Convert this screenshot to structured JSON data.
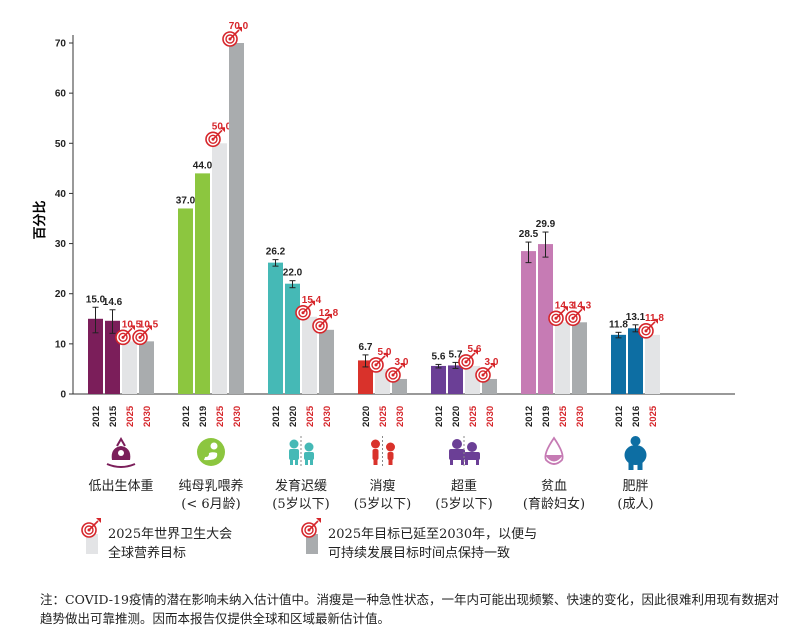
{
  "chart_data": {
    "type": "bar",
    "ylabel": "百分比",
    "ylim": [
      0,
      70
    ],
    "yticks": [
      0,
      10,
      20,
      30,
      40,
      50,
      60,
      70
    ],
    "target_color": "#d6262b",
    "groups": [
      {
        "name": "低出生体重",
        "sub": "",
        "color": "#7b1e5a",
        "icon": "baby-weight-icon",
        "bars": [
          {
            "year": "2012",
            "value": 15.0,
            "label": "15.0",
            "kind": "observed",
            "err": [
              12.2,
              17.3
            ]
          },
          {
            "year": "2015",
            "value": 14.6,
            "label": "14.6",
            "kind": "observed",
            "err": [
              12.1,
              16.8
            ]
          },
          {
            "year": "2025",
            "value": 10.5,
            "label": "10.5",
            "kind": "target2025"
          },
          {
            "year": "2030",
            "value": 10.5,
            "label": "10.5",
            "kind": "target2030"
          }
        ]
      },
      {
        "name": "纯母乳喂养",
        "sub": "(< 6月龄)",
        "color": "#8cc63f",
        "icon": "breastfeeding-icon",
        "bars": [
          {
            "year": "2012",
            "value": 37.0,
            "label": "37.0",
            "kind": "observed"
          },
          {
            "year": "2019",
            "value": 44.0,
            "label": "44.0",
            "kind": "observed"
          },
          {
            "year": "2025",
            "value": 50.0,
            "label": "50.0",
            "kind": "target2025"
          },
          {
            "year": "2030",
            "value": 70.0,
            "label": "70.0",
            "kind": "target2030"
          }
        ]
      },
      {
        "name": "发育迟缓",
        "sub": "(5岁以下)",
        "color": "#45b9b6",
        "icon": "children-height-icon",
        "bars": [
          {
            "year": "2012",
            "value": 26.2,
            "label": "26.2",
            "kind": "observed",
            "err": [
              25.5,
              26.8
            ]
          },
          {
            "year": "2020",
            "value": 22.0,
            "label": "22.0",
            "kind": "observed",
            "err": [
              21.2,
              22.6
            ]
          },
          {
            "year": "2025",
            "value": 15.4,
            "label": "15.4",
            "kind": "target2025"
          },
          {
            "year": "2030",
            "value": 12.8,
            "label": "12.8",
            "kind": "target2030"
          }
        ]
      },
      {
        "name": "消瘦",
        "sub": "(5岁以下)",
        "color": "#d9322b",
        "icon": "children-wasting-icon",
        "bars": [
          {
            "year": "2020",
            "value": 6.7,
            "label": "6.7",
            "kind": "observed",
            "err": [
              5.4,
              7.8
            ]
          },
          {
            "year": "2025",
            "value": 5.0,
            "label": "5.0",
            "kind": "target2025"
          },
          {
            "year": "2030",
            "value": 3.0,
            "label": "3.0",
            "kind": "target2030"
          }
        ]
      },
      {
        "name": "超重",
        "sub": "(5岁以下)",
        "color": "#6b3f96",
        "icon": "children-overweight-icon",
        "bars": [
          {
            "year": "2012",
            "value": 5.6,
            "label": "5.6",
            "kind": "observed",
            "err": [
              5.2,
              5.9
            ]
          },
          {
            "year": "2020",
            "value": 5.7,
            "label": "5.7",
            "kind": "observed",
            "err": [
              5.1,
              6.3
            ]
          },
          {
            "year": "2025",
            "value": 5.6,
            "label": "5.6",
            "kind": "target2025"
          },
          {
            "year": "2030",
            "value": 3.0,
            "label": "3.0",
            "kind": "target2030"
          }
        ]
      },
      {
        "name": "贫血",
        "sub": "(育龄妇女)",
        "color": "#c67bb4",
        "icon": "blood-drop-icon",
        "bars": [
          {
            "year": "2012",
            "value": 28.5,
            "label": "28.5",
            "kind": "observed",
            "err": [
              26.2,
              30.3
            ]
          },
          {
            "year": "2019",
            "value": 29.9,
            "label": "29.9",
            "kind": "observed",
            "err": [
              27.3,
              32.3
            ]
          },
          {
            "year": "2025",
            "value": 14.3,
            "label": "14.3",
            "kind": "target2025"
          },
          {
            "year": "2030",
            "value": 14.3,
            "label": "14.3",
            "kind": "target2030"
          }
        ]
      },
      {
        "name": "肥胖",
        "sub": "(成人)",
        "color": "#0d6ea3",
        "icon": "adult-obesity-icon",
        "bars": [
          {
            "year": "2012",
            "value": 11.8,
            "label": "11.8",
            "kind": "observed",
            "err": [
              11.2,
              12.3
            ]
          },
          {
            "year": "2016",
            "value": 13.1,
            "label": "13.1",
            "kind": "observed",
            "err": [
              12.4,
              13.8
            ]
          },
          {
            "year": "2025",
            "value": 11.8,
            "label": "11.8",
            "kind": "target2025"
          }
        ]
      }
    ],
    "legend": [
      {
        "key": "target2025",
        "text": [
          "2025年世界卫生大会",
          "全球营养目标"
        ]
      },
      {
        "key": "target2030",
        "text": [
          "2025年目标已延至2030年，以便与",
          "可持续发展目标时间点保持一致"
        ]
      }
    ]
  },
  "note": "注：COVID-19疫情的潜在影响未纳入估计值中。消瘦是一种急性状态，一年内可能出现频繁、快速的变化，因此很难利用现有数据对趋势做出可靠推测。因而本报告仅提供全球和区域最新估计值。"
}
